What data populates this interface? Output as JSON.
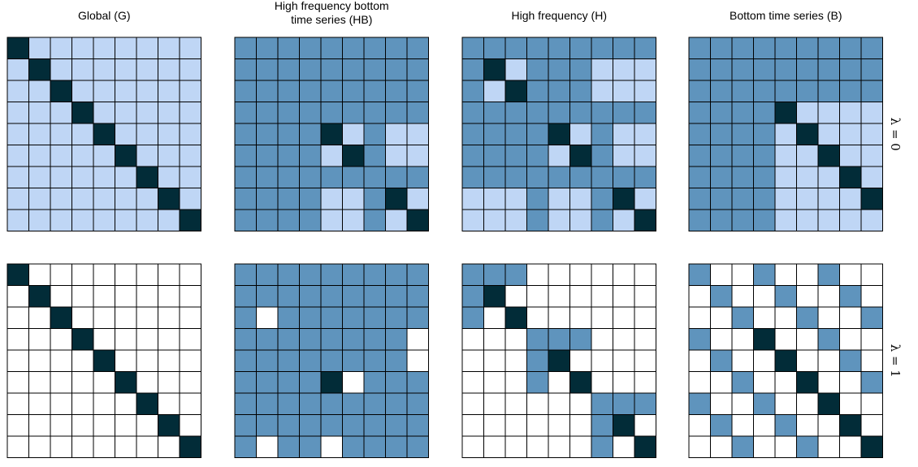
{
  "figure": {
    "columns": [
      {
        "title_lines": [
          "Global (G)"
        ]
      },
      {
        "title_lines": [
          "High frequency bottom",
          "time series (HB)"
        ]
      },
      {
        "title_lines": [
          "High frequency (H)"
        ]
      },
      {
        "title_lines": [
          "Bottom time series (B)"
        ]
      }
    ],
    "rows": [
      {
        "label": "λ = 0"
      },
      {
        "label": "λ = 1"
      }
    ],
    "colors": {
      "diagonal": "#022c38",
      "strong": "#5f94bd",
      "weak": "#bfd6f5",
      "none": "#ffffff",
      "grid": "#000000"
    },
    "legend_codes": {
      "3": "diagonal",
      "2": "strong",
      "1": "weak",
      "0": "none"
    },
    "matrices": [
      [
        [
          "311111111",
          "131111111",
          "113111111",
          "111311111",
          "111131111",
          "111113111",
          "111111311",
          "111111131",
          "111111113"
        ],
        [
          "222222222",
          "222222222",
          "222222222",
          "222222222",
          "222231211",
          "222213211",
          "222222222",
          "222211231",
          "222211213"
        ],
        [
          "222222222",
          "231222111",
          "213222111",
          "222222222",
          "222231211",
          "222213211",
          "222222222",
          "111211231",
          "111211213"
        ],
        [
          "222222222",
          "222222222",
          "222222222",
          "222231111",
          "222213111",
          "222211311",
          "222211131",
          "222211113",
          "222211111"
        ]
      ],
      [
        [
          "300000000",
          "030000000",
          "003000000",
          "000300000",
          "000030000",
          "000003000",
          "000000300",
          "000000030",
          "000000003"
        ],
        [
          "222222222",
          "222222222",
          "202222222",
          "222222220",
          "222222220",
          "222230222",
          "222222222",
          "222222222",
          "202202222"
        ],
        [
          "222000000",
          "230000000",
          "203000000",
          "000222000",
          "000230000",
          "000203000",
          "000000222",
          "000000230",
          "000000203"
        ],
        [
          "200200200",
          "020020020",
          "002002002",
          "200300200",
          "020030020",
          "002003002",
          "200200300",
          "020020030",
          "002002003"
        ]
      ]
    ]
  }
}
